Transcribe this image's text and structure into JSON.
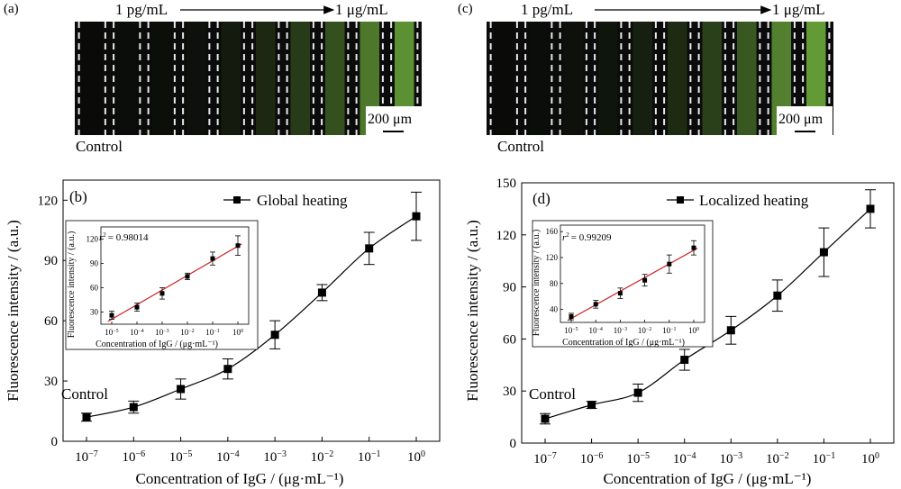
{
  "panels": {
    "a": {
      "letter": "(a)",
      "range_start": "1 pg/mL",
      "range_end": "1 μg/mL",
      "scale_bar": "200 μm",
      "control_label": "Control",
      "strip_levels": [
        0.02,
        0.03,
        0.04,
        0.05,
        0.12,
        0.2,
        0.32,
        0.45,
        0.7,
        0.85
      ]
    },
    "c": {
      "letter": "(c)",
      "range_start": "1 pg/mL",
      "range_end": "1 μg/mL",
      "scale_bar": "200 μm",
      "control_label": "Control",
      "strip_levels": [
        0.02,
        0.03,
        0.05,
        0.08,
        0.15,
        0.22,
        0.35,
        0.5,
        0.75,
        0.92
      ]
    }
  },
  "colors": {
    "strip_green": "#6aa83a",
    "fit_line": "#cc2222",
    "marker": "#000000"
  },
  "chart_data": [
    {
      "id": "b",
      "type": "scatter",
      "panel_letter": "(b)",
      "legend": "Global heating",
      "legend_position": "top-right",
      "annotation": "Control",
      "xlabel": "Concentration of IgG / (μg·mL⁻¹)",
      "ylabel": "Fluorescence intensity / (a.u.)",
      "x_scale": "log",
      "x_exponents": [
        -7,
        -6,
        -5,
        -4,
        -3,
        -2,
        -1,
        0
      ],
      "ylim": [
        0,
        130
      ],
      "yticks": [
        0,
        30,
        60,
        90,
        120
      ],
      "series": [
        {
          "name": "Global heating",
          "x": [
            1e-07,
            1e-06,
            1e-05,
            0.0001,
            0.001,
            0.01,
            0.1,
            1
          ],
          "y": [
            12,
            17,
            26,
            36,
            53,
            74,
            96,
            112
          ],
          "err": [
            2,
            3,
            5,
            5,
            7,
            4,
            8,
            12
          ]
        }
      ],
      "inset": {
        "r2_label": "r",
        "r2_value": "= 0.98014",
        "xlabel": "Concentration of IgG / (μg·mL⁻¹)",
        "ylabel": "Fluorescence intensity / (a.u.)",
        "x_exponents": [
          -5,
          -4,
          -3,
          -2,
          -1,
          0
        ],
        "ylim": [
          15,
          135
        ],
        "yticks": [
          30,
          60,
          90,
          120
        ],
        "x": [
          1e-05,
          0.0001,
          0.001,
          0.01,
          0.1,
          1
        ],
        "y": [
          26,
          36,
          53,
          74,
          96,
          112
        ],
        "err": [
          5,
          5,
          7,
          4,
          8,
          12
        ]
      }
    },
    {
      "id": "d",
      "type": "scatter",
      "panel_letter": "(d)",
      "legend": "Localized heating",
      "legend_position": "top-right",
      "annotation": "Control",
      "xlabel": "Concentration of IgG / (μg·mL⁻¹)",
      "ylabel": "Fluorescence intensity / (a.u.)",
      "x_scale": "log",
      "x_exponents": [
        -7,
        -6,
        -5,
        -4,
        -3,
        -2,
        -1,
        0
      ],
      "ylim": [
        0,
        150
      ],
      "yticks": [
        0,
        30,
        60,
        90,
        120,
        150
      ],
      "series": [
        {
          "name": "Localized heating",
          "x": [
            1e-07,
            1e-06,
            1e-05,
            0.0001,
            0.001,
            0.01,
            0.1,
            1
          ],
          "y": [
            14,
            22,
            29,
            48,
            65,
            85,
            110,
            135
          ],
          "err": [
            3,
            2,
            5,
            6,
            8,
            9,
            14,
            11
          ]
        }
      ],
      "inset": {
        "r2_label": "r",
        "r2_value": "= 0.99209",
        "xlabel": "Concentration of IgG / (μg·mL⁻¹)",
        "ylabel": "Fluorescence intensity / (a.u.)",
        "x_exponents": [
          -5,
          -4,
          -3,
          -2,
          -1,
          0
        ],
        "ylim": [
          20,
          170
        ],
        "yticks": [
          40,
          80,
          120,
          160
        ],
        "x": [
          1e-05,
          0.0001,
          0.001,
          0.01,
          0.1,
          1
        ],
        "y": [
          29,
          48,
          65,
          85,
          110,
          135
        ],
        "err": [
          5,
          6,
          8,
          9,
          14,
          11
        ]
      }
    }
  ]
}
